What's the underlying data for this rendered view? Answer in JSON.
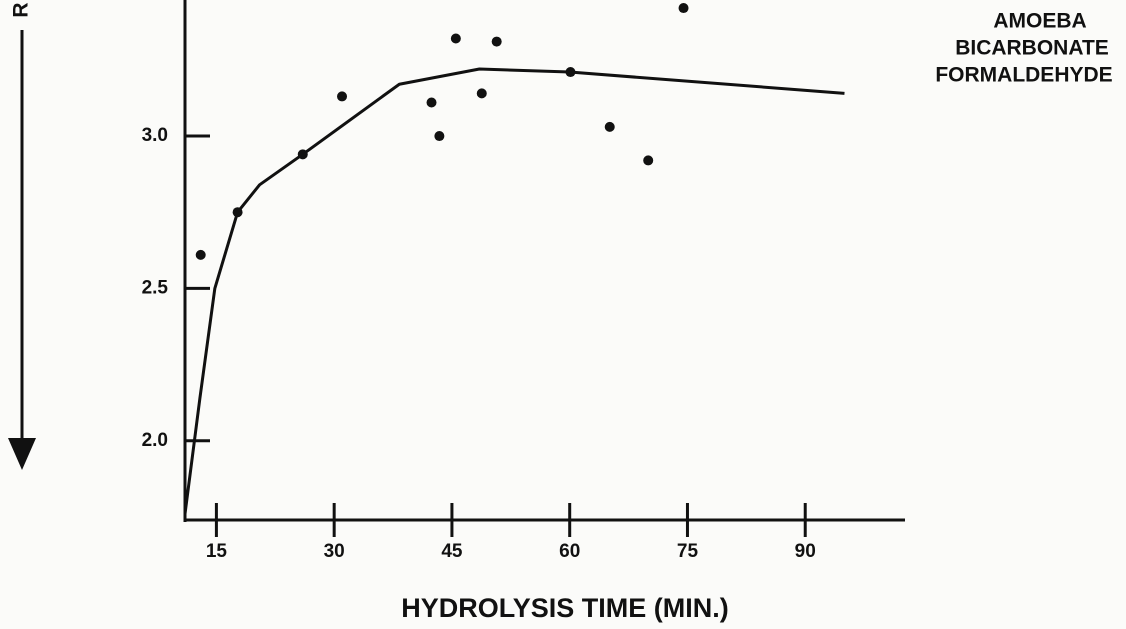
{
  "chart_data": {
    "type": "scatter",
    "y_label": "R",
    "x_label": "HYDROLYSIS TIME (MIN.)",
    "annotations": [
      "AMOEBA",
      "BICARBONATE",
      "FORMALDEHYDE"
    ],
    "color": "#111111",
    "x": [
      13,
      17.7,
      26,
      31,
      42.4,
      43.4,
      45.5,
      48.8,
      50.7,
      60.1,
      65.1,
      70,
      74.5
    ],
    "y": [
      2.61,
      2.75,
      2.94,
      3.13,
      3.11,
      3.0,
      3.32,
      3.14,
      3.31,
      3.21,
      3.03,
      2.92,
      3.42
    ],
    "curve": {
      "x": [
        11,
        12.9,
        14.8,
        17.7,
        20.5,
        26,
        38.3,
        48.5,
        60,
        95
      ],
      "y": [
        1.76,
        2.14,
        2.5,
        2.75,
        2.84,
        2.94,
        3.17,
        3.22,
        3.21,
        3.14
      ]
    },
    "xlim": [
      11,
      103.6
    ],
    "ylim": [
      1.74,
      3.43
    ],
    "xticks": [
      15,
      30,
      45,
      60,
      75,
      90
    ],
    "yticks": [
      {
        "value": 2,
        "label": "2.0"
      },
      2.5,
      {
        "value": 3,
        "label": "3.0"
      }
    ]
  }
}
